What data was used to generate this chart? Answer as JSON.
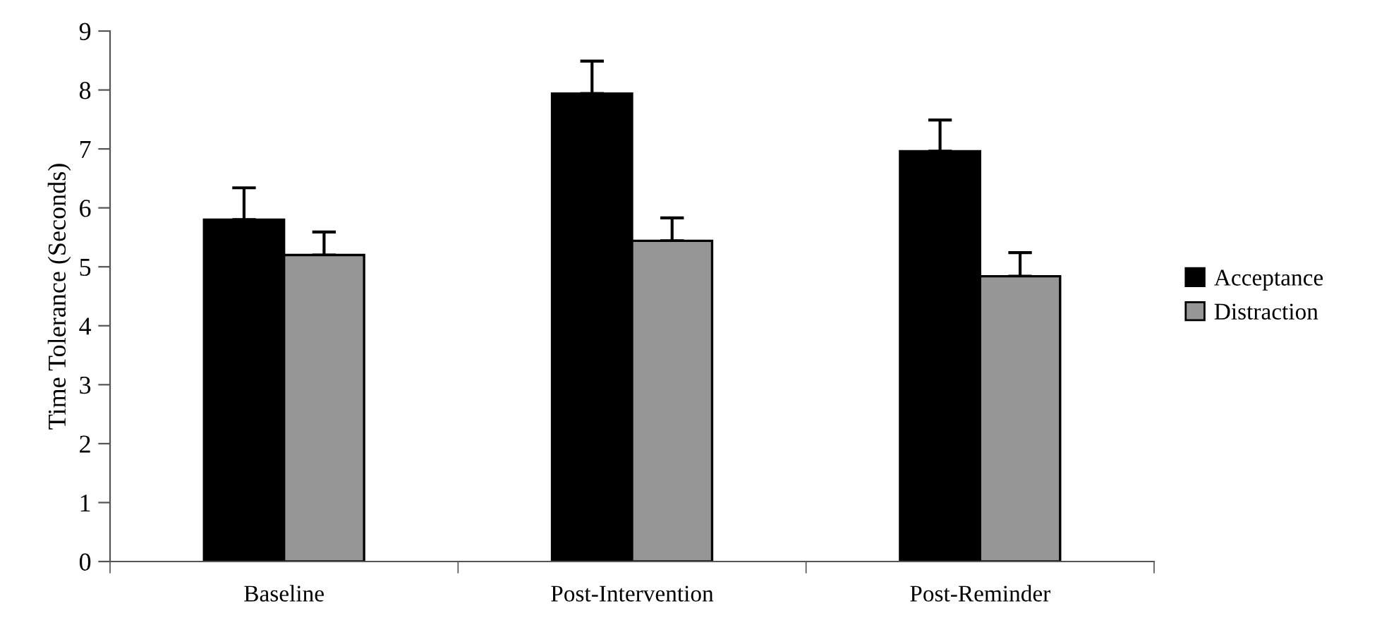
{
  "chart_data": {
    "type": "bar",
    "ylabel": "Time Tolerance (Seconds)",
    "categories": [
      "Baseline",
      "Post-Intervention",
      "Post-Reminder"
    ],
    "series": [
      {
        "name": "Acceptance",
        "color": "#000000",
        "values": [
          5.8,
          7.94,
          6.96
        ],
        "errors": [
          [
            5.8,
            6.34
          ],
          [
            7.94,
            8.49
          ],
          [
            6.96,
            7.49
          ]
        ]
      },
      {
        "name": "Distraction",
        "color": "#969696",
        "values": [
          5.2,
          5.44,
          4.84
        ],
        "errors": [
          [
            5.2,
            5.59
          ],
          [
            5.44,
            5.83
          ],
          [
            4.84,
            5.24
          ]
        ]
      }
    ],
    "ylim": [
      0,
      9
    ],
    "yticks": [
      0,
      1,
      2,
      3,
      4,
      5,
      6,
      7,
      8,
      9
    ],
    "grid": false,
    "legend": "right"
  }
}
